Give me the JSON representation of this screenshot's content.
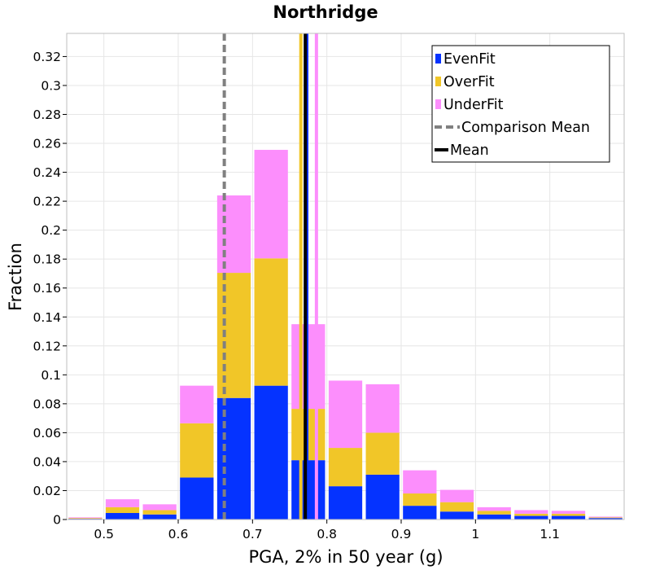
{
  "chart_data": {
    "type": "bar",
    "stacked": true,
    "title": "Northridge",
    "xlabel": "PGA, 2% in 50 year (g)",
    "ylabel": "Fraction",
    "xlim": [
      0.45,
      1.2
    ],
    "ylim": [
      0,
      0.336
    ],
    "bin_width": 0.05,
    "x_ticks": [
      0.5,
      0.6,
      0.7,
      0.8,
      0.9,
      1,
      1.1
    ],
    "x_tick_labels": [
      "0.5",
      "0.6",
      "0.7",
      "0.8",
      "0.9",
      "1",
      "1.1"
    ],
    "y_ticks": [
      0,
      0.02,
      0.04,
      0.06,
      0.08,
      0.1,
      0.12,
      0.14,
      0.16,
      0.18,
      0.2,
      0.22,
      0.24,
      0.26,
      0.28,
      0.3,
      0.32
    ],
    "y_tick_labels": [
      "0",
      "0.02",
      "0.04",
      "0.06",
      "0.08",
      "0.1",
      "0.12",
      "0.14",
      "0.16",
      "0.18",
      "0.2",
      "0.22",
      "0.24",
      "0.26",
      "0.28",
      "0.3",
      "0.32"
    ],
    "bins": [
      0.475,
      0.525,
      0.575,
      0.625,
      0.675,
      0.725,
      0.775,
      0.825,
      0.875,
      0.925,
      0.975,
      1.025,
      1.075,
      1.125,
      1.175
    ],
    "series": [
      {
        "name": "EvenFit",
        "color": "#0533ff",
        "values": [
          0.0005,
          0.0045,
          0.0035,
          0.029,
          0.084,
          0.0925,
          0.041,
          0.023,
          0.031,
          0.0095,
          0.0055,
          0.0035,
          0.0025,
          0.0025,
          0.001
        ]
      },
      {
        "name": "OverFit",
        "color": "#f1c628",
        "values": [
          0.0005,
          0.004,
          0.003,
          0.0375,
          0.0865,
          0.088,
          0.0355,
          0.0265,
          0.029,
          0.0085,
          0.0065,
          0.0025,
          0.0015,
          0.0015,
          0.0005
        ]
      },
      {
        "name": "UnderFit",
        "color": "#fc8efc",
        "values": [
          0.0005,
          0.0055,
          0.004,
          0.026,
          0.0535,
          0.075,
          0.0585,
          0.0465,
          0.0335,
          0.016,
          0.0085,
          0.0025,
          0.0025,
          0.002,
          0.0005
        ]
      }
    ],
    "vertical_lines": [
      {
        "name": "Comparison Mean",
        "x": 0.662,
        "color": "#808080",
        "style": "dashed",
        "in_legend": true
      },
      {
        "name": "OverFit mean",
        "x": 0.765,
        "color": "#f1c628",
        "style": "solid",
        "in_legend": false
      },
      {
        "name": "EvenFit mean",
        "x": 0.773,
        "color": "#0533ff",
        "style": "solid",
        "in_legend": false
      },
      {
        "name": "UnderFit mean",
        "x": 0.786,
        "color": "#fc8efc",
        "style": "solid",
        "in_legend": false
      },
      {
        "name": "Mean",
        "x": 0.771,
        "color": "#000000",
        "style": "solid",
        "in_legend": true
      }
    ],
    "legend": {
      "position": "top-right",
      "entries": [
        {
          "label": "EvenFit",
          "kind": "square",
          "color": "#0533ff"
        },
        {
          "label": "OverFit",
          "kind": "square",
          "color": "#f1c628"
        },
        {
          "label": "UnderFit",
          "kind": "square",
          "color": "#fc8efc"
        },
        {
          "label": "Comparison Mean",
          "kind": "dashed-line",
          "color": "#808080"
        },
        {
          "label": "Mean",
          "kind": "line",
          "color": "#000000"
        }
      ]
    },
    "grid": true
  }
}
